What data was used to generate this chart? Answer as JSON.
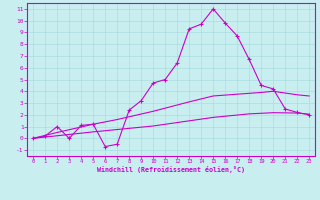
{
  "xlabel": "Windchill (Refroidissement éolien,°C)",
  "background_color": "#c8eef0",
  "line_color": "#cc00cc",
  "xlim": [
    -0.5,
    23.5
  ],
  "ylim": [
    -1.5,
    11.5
  ],
  "xticks": [
    0,
    1,
    2,
    3,
    4,
    5,
    6,
    7,
    8,
    9,
    10,
    11,
    12,
    13,
    14,
    15,
    16,
    17,
    18,
    19,
    20,
    21,
    22,
    23
  ],
  "yticks": [
    -1,
    0,
    1,
    2,
    3,
    4,
    5,
    6,
    7,
    8,
    9,
    10,
    11
  ],
  "line1_x": [
    0,
    1,
    2,
    3,
    4,
    5,
    6,
    7,
    8,
    9,
    10,
    11,
    12,
    13,
    14,
    15,
    16,
    17,
    18,
    19,
    20,
    21,
    22,
    23
  ],
  "line1_y": [
    0.0,
    0.2,
    1.0,
    0.0,
    1.1,
    1.2,
    -0.7,
    -0.5,
    2.4,
    3.2,
    4.7,
    5.0,
    6.4,
    9.3,
    9.7,
    11.0,
    9.8,
    8.7,
    6.7,
    4.5,
    4.2,
    2.5,
    2.2,
    2.0
  ],
  "line2_x": [
    0,
    2,
    5,
    7,
    10,
    13,
    15,
    17,
    19,
    20,
    21,
    22,
    23
  ],
  "line2_y": [
    0.0,
    0.5,
    1.2,
    1.6,
    2.3,
    3.1,
    3.6,
    3.75,
    3.9,
    4.0,
    3.85,
    3.7,
    3.6
  ],
  "line3_x": [
    0,
    5,
    10,
    15,
    18,
    20,
    22,
    23
  ],
  "line3_y": [
    0.0,
    0.55,
    1.05,
    1.78,
    2.08,
    2.18,
    2.15,
    2.05
  ]
}
